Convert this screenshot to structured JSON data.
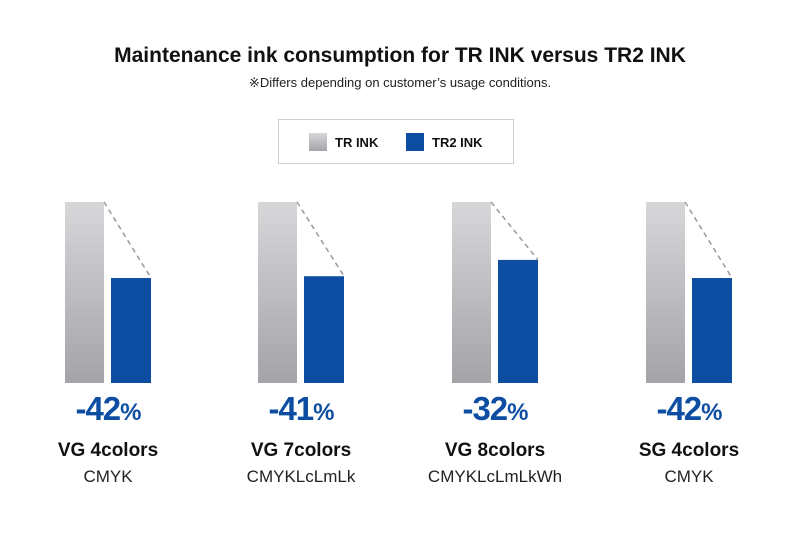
{
  "chart_data": {
    "type": "bar",
    "title": "Maintenance ink consumption for TR INK versus TR2 INK",
    "subtitle": "※Differs depending on customer’s usage conditions.",
    "legend": [
      "TR INK",
      "TR2 INK"
    ],
    "legend_placement": "top-center",
    "categories": [
      "VG 4colors",
      "VG 7colors",
      "VG 8colors",
      "SG 4colors"
    ],
    "category_subtitles": [
      "CMYK",
      "CMYKLcLmLk",
      "CMYKLcLmLkWh",
      "CMYK"
    ],
    "series": [
      {
        "name": "TR INK",
        "values": [
          100,
          100,
          100,
          100
        ],
        "color": "#b9babd"
      },
      {
        "name": "TR2 INK",
        "values": [
          58,
          59,
          68,
          58
        ],
        "color": "#0d4ea3"
      }
    ],
    "labels": [
      "-42",
      "-41",
      "-32",
      "-42"
    ],
    "label_unit": "%",
    "ylim": [
      0,
      100
    ],
    "grid": false
  }
}
